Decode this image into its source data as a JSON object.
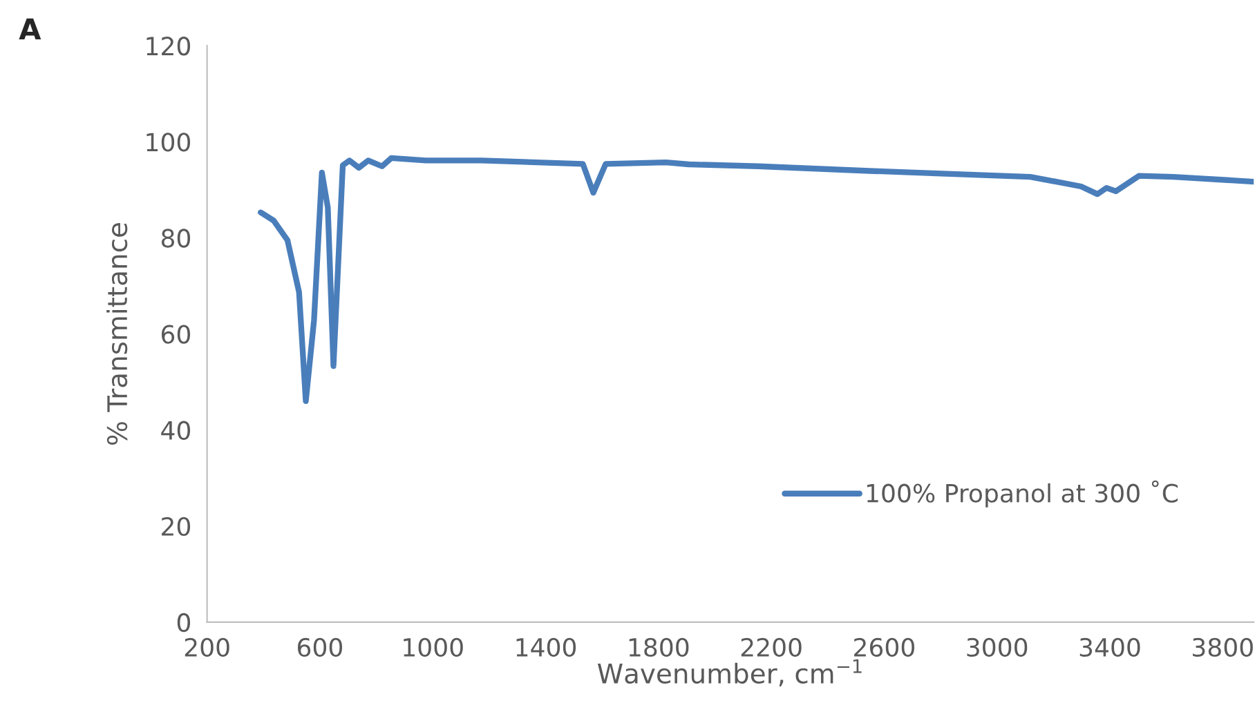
{
  "chart_data": {
    "type": "line",
    "title": "A",
    "xlabel": "Wavenumber, cm$^{−1}$",
    "ylabel": "% Transmittance",
    "xlim": [
      200,
      3910
    ],
    "xticks": [
      200,
      600,
      1000,
      1400,
      1800,
      2200,
      2600,
      3000,
      3400,
      3800
    ],
    "ylim": [
      0,
      120
    ],
    "yticks": [
      0,
      20,
      40,
      60,
      80,
      100,
      120
    ],
    "grid": false,
    "legend": "bottom right",
    "marker": "none",
    "line_style": "solid",
    "series": [
      {
        "name": "100% Propanol at 300 ˚C",
        "color": "#4a7ebb",
        "x": [
          390,
          436,
          485,
          526,
          550,
          579,
          607,
          628,
          648,
          681,
          705,
          738,
          771,
          820,
          853,
          975,
          1172,
          1532,
          1569,
          1613,
          1826,
          1908,
          2153,
          2562,
          3118,
          3298,
          3356,
          3388,
          3421,
          3503,
          3626,
          3910
        ],
        "values": [
          85.3,
          83.6,
          79.5,
          68.7,
          46,
          62.8,
          93.6,
          86.3,
          53.3,
          95.1,
          96.1,
          94.6,
          96.1,
          94.9,
          96.6,
          96.1,
          96.1,
          95.4,
          89.4,
          95.4,
          95.7,
          95.3,
          94.9,
          93.9,
          92.7,
          90.7,
          89.1,
          90.4,
          89.7,
          92.9,
          92.7,
          91.7
        ]
      }
    ]
  }
}
